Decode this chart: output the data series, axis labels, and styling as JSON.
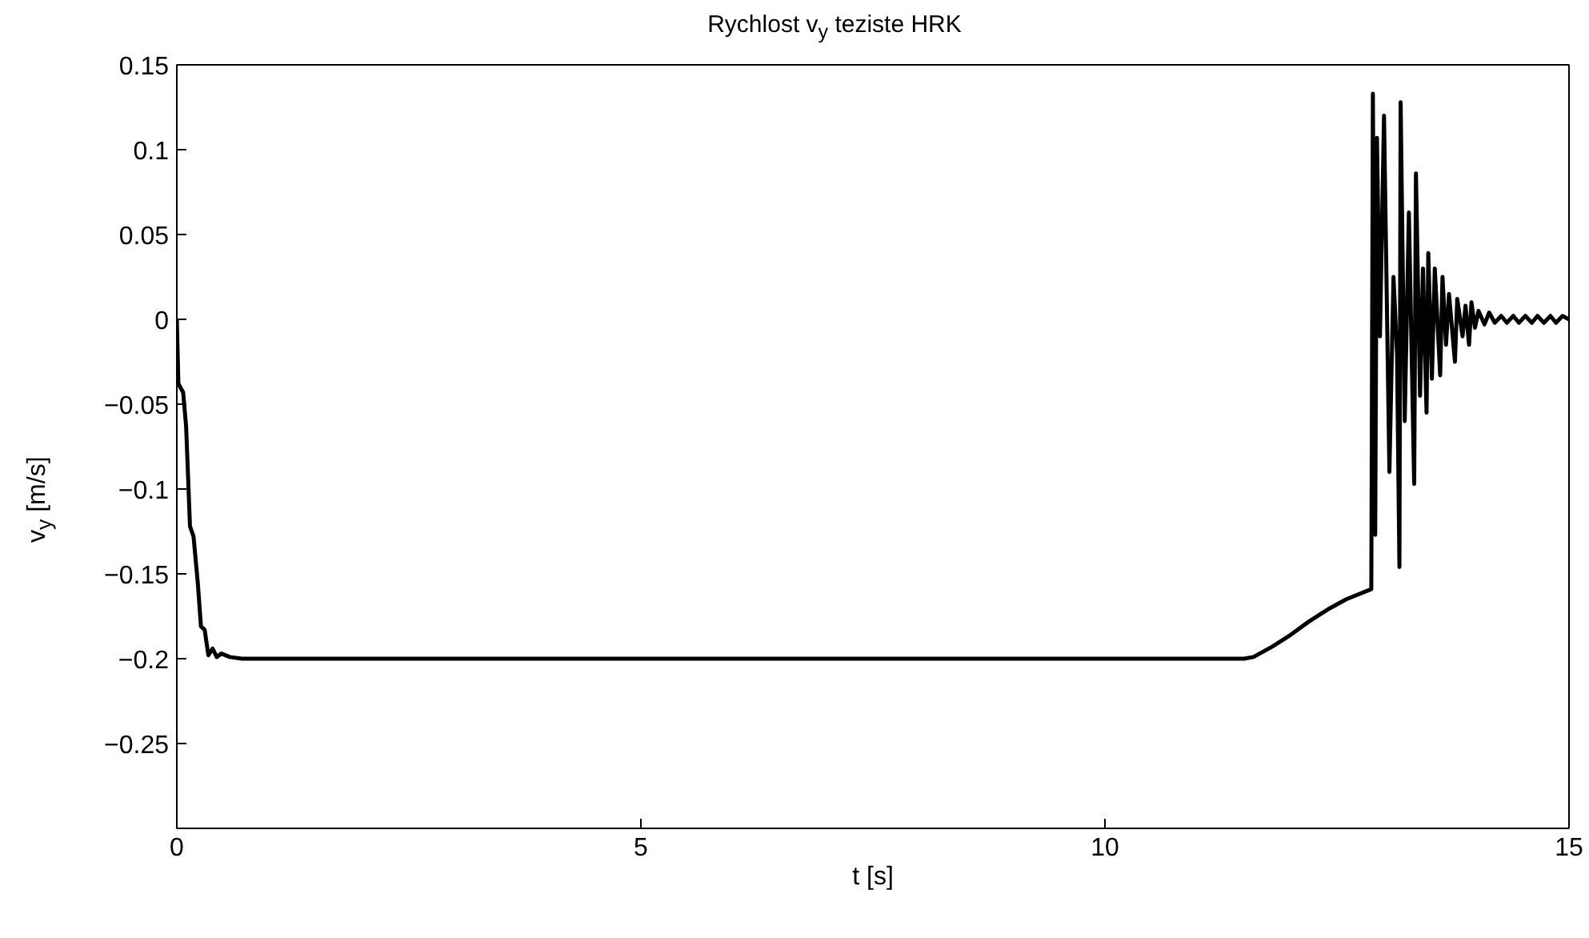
{
  "chart_data": {
    "type": "line",
    "title": "Rychlost v$_{y}$ teziste HRK",
    "xlabel": "t [s]",
    "ylabel": "v$_{y}$ [m/s]",
    "xlim": [
      0,
      15
    ],
    "ylim": [
      -0.3,
      0.15
    ],
    "xticks": [
      0,
      5,
      10,
      15
    ],
    "yticks": [
      {
        "value": -0.25,
        "label": "−0.25"
      },
      {
        "value": -0.2,
        "label": "−0.2"
      },
      {
        "value": -0.15,
        "label": "−0.15"
      },
      {
        "value": -0.1,
        "label": "−0.1"
      },
      {
        "value": -0.05,
        "label": "−0.05"
      },
      0,
      0.05,
      0.1,
      0.15
    ],
    "grid": false,
    "marker": "none",
    "line_style": "solid",
    "series": [
      {
        "color": "#000000",
        "x": [
          0,
          0.017,
          0.068,
          0.1,
          0.142,
          0.18,
          0.227,
          0.26,
          0.3,
          0.34,
          0.386,
          0.43,
          0.48,
          0.57,
          0.7,
          11.5,
          11.6,
          11.8,
          12.0,
          12.2,
          12.4,
          12.6,
          12.87,
          12.887,
          12.912,
          12.931,
          12.963,
          13.007,
          13.065,
          13.109,
          13.147,
          13.173,
          13.186,
          13.23,
          13.275,
          13.332,
          13.351,
          13.395,
          13.427,
          13.465,
          13.484,
          13.523,
          13.554,
          13.612,
          13.637,
          13.675,
          13.707,
          13.771,
          13.796,
          13.853,
          13.885,
          13.923,
          13.949,
          13.987,
          14.025,
          14.089,
          14.14,
          14.2,
          14.27,
          14.33,
          14.4,
          14.46,
          14.53,
          14.6,
          14.66,
          14.73,
          14.8,
          14.86,
          14.93,
          15.0
        ],
        "values": [
          0,
          -0.038,
          -0.043,
          -0.063,
          -0.122,
          -0.128,
          -0.156,
          -0.181,
          -0.183,
          -0.198,
          -0.194,
          -0.199,
          -0.197,
          -0.199,
          -0.2,
          -0.2,
          -0.199,
          -0.193,
          -0.186,
          -0.178,
          -0.171,
          -0.165,
          -0.159,
          0.133,
          -0.127,
          0.107,
          -0.01,
          0.12,
          -0.09,
          0.025,
          -0.02,
          -0.146,
          0.128,
          -0.06,
          0.063,
          -0.097,
          0.086,
          -0.045,
          0.03,
          -0.055,
          0.039,
          -0.035,
          0.03,
          -0.033,
          0.025,
          -0.015,
          0.015,
          -0.025,
          0.012,
          -0.01,
          0.008,
          -0.015,
          0.01,
          -0.005,
          0.005,
          -0.003,
          0.004,
          -0.002,
          0.002,
          -0.002,
          0.002,
          -0.002,
          0.002,
          -0.002,
          0.002,
          -0.002,
          0.002,
          -0.002,
          0.002,
          0
        ]
      }
    ]
  }
}
